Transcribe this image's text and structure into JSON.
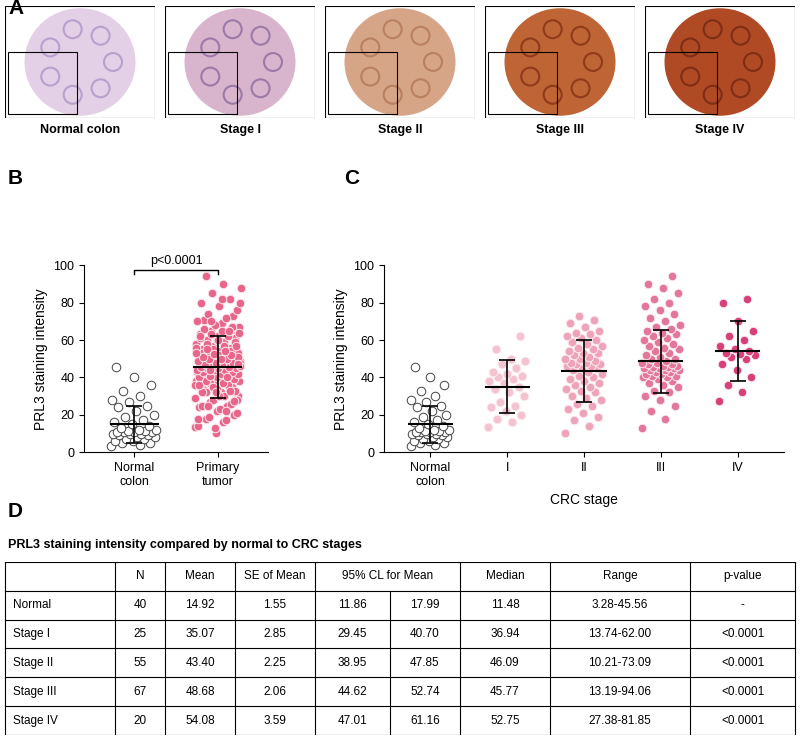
{
  "panel_labels": [
    "A",
    "B",
    "C",
    "D"
  ],
  "images": {
    "labels": [
      "Normal colon",
      "Stage I",
      "Stage II",
      "Stage III",
      "Stage IV"
    ]
  },
  "chart_data": [
    {
      "type": "scatter",
      "ylabel": "PRL3 staining intensity",
      "categories": [
        "Normal colon",
        "Primary tumor"
      ],
      "colors": [
        "#ffffff",
        "#e8668a"
      ],
      "marker": "o",
      "values": [
        [
          3.28,
          4,
          5,
          5,
          6,
          6,
          7,
          7,
          8,
          8,
          9,
          9,
          10,
          10,
          10,
          11,
          11,
          11,
          11,
          11.5,
          11.5,
          12,
          12,
          13,
          14,
          15,
          16,
          17,
          19,
          20,
          22,
          24,
          25,
          27,
          28,
          30,
          33,
          36,
          40,
          45.56
        ],
        [
          13.74,
          16,
          18,
          20,
          22,
          24,
          25,
          27,
          30,
          32,
          34,
          35,
          36.94,
          38,
          39,
          40,
          41,
          42,
          43,
          45,
          47,
          49,
          50,
          55,
          62,
          10.21,
          14,
          17,
          19,
          21,
          23,
          25,
          26,
          28,
          29,
          30,
          32,
          33,
          34,
          35,
          36,
          37,
          38,
          39,
          40,
          41,
          42,
          43,
          44,
          45,
          45,
          46,
          46.09,
          47,
          47,
          48,
          48,
          49,
          50,
          50,
          51,
          52,
          53,
          53,
          54,
          55,
          56,
          57,
          58,
          59,
          60,
          61,
          62,
          63,
          64,
          65,
          67,
          69,
          71,
          73.09,
          13.19,
          18,
          22,
          25,
          28,
          30,
          32,
          33,
          35,
          36,
          37,
          38,
          39,
          40,
          40,
          41,
          41,
          42,
          42,
          43,
          43,
          44,
          44,
          44,
          45,
          45,
          45,
          45.5,
          45.77,
          46,
          46,
          47,
          47,
          48,
          48,
          49,
          50,
          50,
          51,
          52,
          53,
          54,
          55,
          56,
          57,
          58,
          59,
          60,
          61,
          62,
          63,
          64,
          65,
          66,
          67,
          68,
          70,
          72,
          74,
          76,
          78,
          80,
          82,
          85,
          88,
          90,
          94.06,
          27.38,
          32,
          36,
          40,
          44,
          47,
          50,
          51,
          52,
          52.5,
          53,
          54,
          55,
          57,
          60,
          62,
          65,
          70,
          80,
          81.85
        ]
      ],
      "mean": [
        14.92,
        45.5
      ],
      "sd": [
        9.8,
        16.5
      ],
      "ylim": [
        0,
        100
      ],
      "yticks": [
        0,
        20,
        40,
        60,
        80,
        100
      ],
      "annotation": "p<0.0001"
    },
    {
      "type": "scatter",
      "ylabel": "PRL3 staining intensity",
      "xlabel": "CRC stage",
      "categories": [
        "Normal colon",
        "I",
        "II",
        "III",
        "IV"
      ],
      "colors": [
        "#ffffff",
        "#f5c3d0",
        "#efa3b8",
        "#e3779a",
        "#d8407a"
      ],
      "marker": "o",
      "values": [
        [
          3.28,
          4,
          5,
          5,
          6,
          6,
          7,
          7,
          8,
          8,
          9,
          9,
          10,
          10,
          10,
          11,
          11,
          11,
          11,
          11.5,
          11.5,
          12,
          12,
          13,
          14,
          15,
          16,
          17,
          19,
          20,
          22,
          24,
          25,
          27,
          28,
          30,
          33,
          36,
          40,
          45.56
        ],
        [
          13.74,
          16,
          18,
          20,
          22,
          24,
          25,
          27,
          30,
          32,
          34,
          35,
          36.94,
          38,
          39,
          40,
          41,
          42,
          43,
          45,
          47,
          49,
          50,
          55,
          62
        ],
        [
          10.21,
          14,
          17,
          19,
          21,
          23,
          25,
          26,
          28,
          29,
          30,
          32,
          33,
          34,
          35,
          36,
          37,
          38,
          39,
          40,
          41,
          42,
          43,
          44,
          45,
          45,
          46,
          46.09,
          47,
          47,
          48,
          48,
          49,
          50,
          50,
          51,
          52,
          53,
          53,
          54,
          55,
          56,
          57,
          58,
          59,
          60,
          61,
          62,
          63,
          64,
          65,
          67,
          69,
          71,
          73.09
        ],
        [
          13.19,
          18,
          22,
          25,
          28,
          30,
          32,
          33,
          35,
          36,
          37,
          38,
          39,
          40,
          40,
          41,
          41,
          42,
          42,
          43,
          43,
          44,
          44,
          44,
          45,
          45,
          45,
          45.5,
          45.77,
          46,
          46,
          47,
          47,
          48,
          48,
          49,
          50,
          50,
          51,
          52,
          53,
          54,
          55,
          56,
          57,
          58,
          59,
          60,
          61,
          62,
          63,
          64,
          65,
          66,
          67,
          68,
          70,
          72,
          74,
          76,
          78,
          80,
          82,
          85,
          88,
          90,
          94.06
        ],
        [
          27.38,
          32,
          36,
          40,
          44,
          47,
          50,
          51,
          52,
          52.5,
          53,
          54,
          55,
          57,
          60,
          62,
          65,
          70,
          80,
          81.85
        ]
      ],
      "mean": [
        14.92,
        35.07,
        43.4,
        48.68,
        54.08
      ],
      "sd": [
        9.8,
        14.3,
        16.7,
        16.9,
        16.1
      ],
      "ylim": [
        0,
        100
      ],
      "yticks": [
        0,
        20,
        40,
        60,
        80,
        100
      ]
    }
  ],
  "table": {
    "title": "PRL3 staining intensity compared by normal to CRC stages",
    "header": [
      "N",
      "Mean",
      "SE of Mean",
      "95% CL for Mean",
      "Median",
      "Range",
      "p-value"
    ],
    "rows": [
      [
        "Normal",
        "40",
        "14.92",
        "1.55",
        "11.86",
        "17.99",
        "11.48",
        "3.28-45.56",
        "-"
      ],
      [
        "Stage I",
        "25",
        "35.07",
        "2.85",
        "29.45",
        "40.70",
        "36.94",
        "13.74-62.00",
        "<0.0001"
      ],
      [
        "Stage II",
        "55",
        "43.40",
        "2.25",
        "38.95",
        "47.85",
        "46.09",
        "10.21-73.09",
        "<0.0001"
      ],
      [
        "Stage III",
        "67",
        "48.68",
        "2.06",
        "44.62",
        "52.74",
        "45.77",
        "13.19-94.06",
        "<0.0001"
      ],
      [
        "Stage IV",
        "20",
        "54.08",
        "3.59",
        "47.01",
        "61.16",
        "52.75",
        "27.38-81.85",
        "<0.0001"
      ]
    ]
  }
}
